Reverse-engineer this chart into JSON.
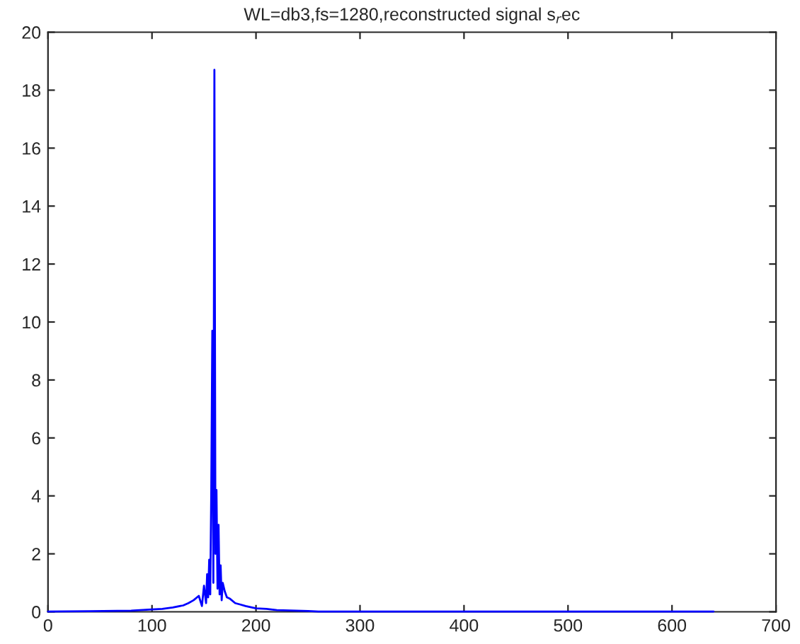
{
  "chart_data": {
    "type": "line",
    "title": "WL=db3,fs=1280,reconstructed signal s$_{r}$ec",
    "x": [
      0,
      40,
      80,
      100,
      110,
      120,
      130,
      135,
      140,
      145,
      148,
      150,
      152,
      153,
      154,
      155,
      156,
      157,
      158,
      159,
      160,
      161,
      162,
      163,
      164,
      165,
      166,
      167,
      168,
      170,
      172,
      175,
      180,
      185,
      190,
      200,
      210,
      220,
      250,
      260,
      330,
      400,
      500,
      600,
      640
    ],
    "series": [
      {
        "color": "#0000ff",
        "values": [
          0.01,
          0.02,
          0.04,
          0.08,
          0.1,
          0.15,
          0.22,
          0.3,
          0.4,
          0.55,
          0.2,
          0.9,
          0.3,
          1.3,
          0.5,
          1.8,
          0.6,
          4.2,
          9.7,
          1.0,
          18.7,
          2.0,
          4.2,
          0.8,
          3.0,
          0.6,
          1.6,
          0.4,
          1.0,
          0.7,
          0.5,
          0.45,
          0.3,
          0.25,
          0.2,
          0.12,
          0.1,
          0.06,
          0.03,
          0.01,
          0.01,
          0.01,
          0.01,
          0.01,
          0.01
        ]
      }
    ],
    "xlim": [
      0,
      700
    ],
    "ylim": [
      0,
      20
    ],
    "xticks": [
      0,
      100,
      200,
      300,
      400,
      500,
      600,
      700
    ],
    "yticks": [
      0,
      2,
      4,
      6,
      8,
      10,
      12,
      14,
      16,
      18,
      20
    ],
    "grid": false,
    "legend": false,
    "marker": "none",
    "line_style": "solid"
  }
}
